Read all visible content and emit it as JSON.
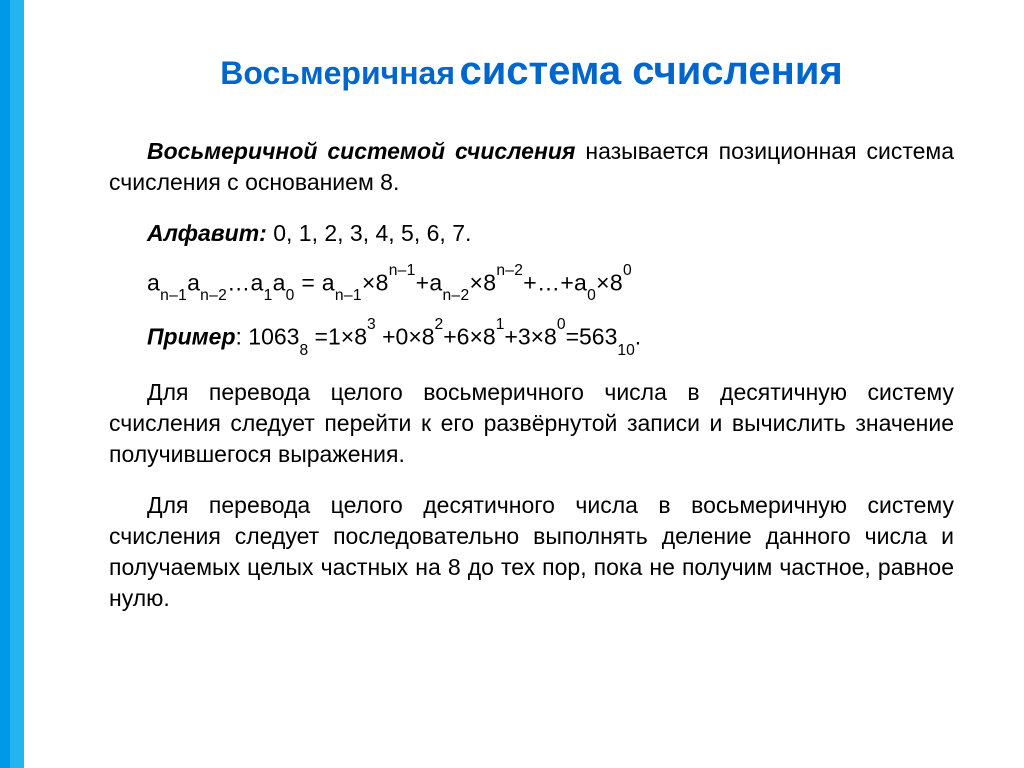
{
  "colors": {
    "sidebar_outer": "#0099e6",
    "sidebar_inner": "#22b5f0",
    "title": "#0066cc",
    "text": "#000000",
    "background": "#ffffff"
  },
  "title": {
    "part1": "Восьмеричная",
    "part2": "система счисления",
    "fontsize_part1": 32,
    "fontsize_part2": 40
  },
  "definition": {
    "term": "Восьмеричной системой счисления",
    "rest": " называется позиционная система счисления с основанием 8."
  },
  "alphabet": {
    "label": "Алфавит:",
    "values": " 0, 1, 2, 3, 4, 5, 6, 7."
  },
  "expansion_formula": {
    "lhs_terms": [
      "a",
      "n–1",
      "a",
      "n–2",
      "…a",
      "1",
      "a",
      "0"
    ],
    "eq": " = ",
    "rhs": "a_{n–1}×8^{n–1}+a_{n–2}×8^{n–2}+…+a_0×8^0"
  },
  "example": {
    "label": "Пример",
    "colon": ": ",
    "value_octal": "1063",
    "base_octal": "8",
    "eq": " =",
    "expansion": "1×8^3 +0×8^2+6×8^1+3×8^0",
    "result": "563",
    "base_dec": "10",
    "period": "."
  },
  "para_oct_to_dec": "Для перевода целого восьмеричного числа в десятичную систему счисления следует перейти к его развёрнутой записи и вычислить значение получившегося выражения.",
  "para_dec_to_oct": "Для перевода целого десятичного числа в восьмеричную систему счисления следует последовательно выполнять деление данного числа и получаемых целых частных на 8 до тех пор, пока не получим частное, равное нулю.",
  "typography": {
    "body_fontsize": 23,
    "font_family": "Arial"
  }
}
